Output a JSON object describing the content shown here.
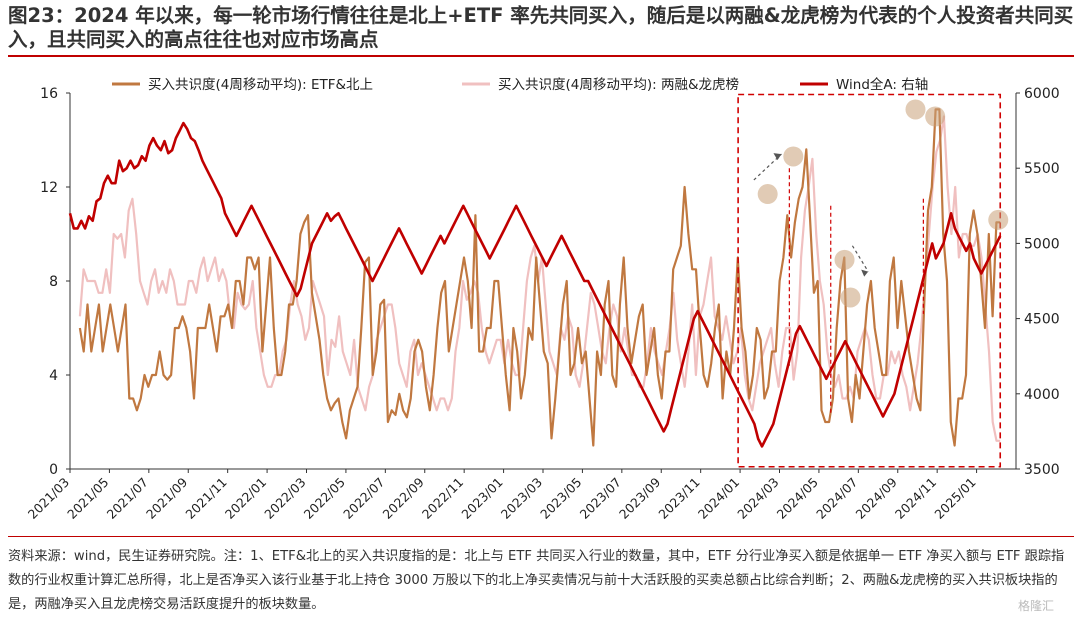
{
  "title": "图23：2024 年以来，每一轮市场行情往往是北上+ETF 率先共同买入，随后是以两融&龙虎榜为代表的个人投资者共同买入，且共同买入的高点往往也对应市场高点",
  "note": "资料来源：wind，民生证券研究院。注：1、ETF&北上的买入共识度指的是：北上与 ETF 共同买入行业的数量，其中，ETF 分行业净买入额是依据单一 ETF 净买入额与 ETF 跟踪指数的行业权重计算汇总所得，北上是否净买入该行业基于北上持仓 3000 万股以下的北上净买卖情况与前十大活跃股的买卖总额占比综合判断；2、两融&龙虎榜的买入共识板块指的是，两融净买入且龙虎榜交易活跃度提升的板块数量。",
  "watermark": "格隆汇",
  "chart_data": {
    "type": "line",
    "x_ticks": [
      "2021/03",
      "2021/05",
      "2021/07",
      "2021/09",
      "2021/11",
      "2022/01",
      "2022/03",
      "2022/05",
      "2022/07",
      "2022/09",
      "2022/11",
      "2023/01",
      "2023/03",
      "2023/05",
      "2023/07",
      "2023/09",
      "2023/11",
      "2024/01",
      "2024/03",
      "2024/05",
      "2024/07",
      "2024/09",
      "2024/11",
      "2025/01"
    ],
    "y_left": {
      "min": 0,
      "max": 16,
      "ticks": [
        0,
        4,
        8,
        12,
        16
      ]
    },
    "y_right": {
      "min": 3500,
      "max": 6000,
      "ticks": [
        3500,
        4000,
        4500,
        5000,
        5500,
        6000
      ]
    },
    "x_range": [
      0,
      48
    ],
    "series": [
      {
        "name": "买入共识度(4周移动平均): ETF&北上",
        "axis": "left",
        "color": "#c07840",
        "x_start": 0.5,
        "values": [
          6,
          5,
          7,
          5,
          6,
          7,
          5,
          6,
          7,
          6,
          5,
          6,
          7,
          3,
          3,
          2.5,
          3,
          4,
          3.5,
          4,
          4,
          5,
          4,
          3.8,
          4,
          6,
          6,
          6.5,
          6,
          5,
          3,
          6,
          6,
          6,
          7,
          6,
          5,
          6.5,
          6.5,
          7,
          6,
          8,
          8,
          7,
          9,
          9,
          8.5,
          9,
          5,
          7,
          9,
          6,
          4,
          4,
          5,
          7,
          7,
          8,
          10,
          10.5,
          10.8,
          7.5,
          6.5,
          5.5,
          4,
          3,
          2.5,
          2.8,
          3,
          2,
          1.3,
          2.5,
          3,
          3.5,
          6,
          8.8,
          9,
          4,
          5,
          7,
          7.2,
          2,
          2.5,
          2.3,
          3.2,
          2.5,
          2.2,
          3,
          5,
          5.5,
          5,
          3.5,
          2.5,
          4,
          6,
          7.5,
          8,
          5,
          6,
          7,
          8,
          9,
          8,
          6,
          10.8,
          5,
          5,
          6,
          6,
          8,
          8,
          6,
          4,
          2.5,
          6,
          5,
          3,
          4,
          6,
          5.5,
          9,
          7,
          5,
          4.5,
          1.3,
          3,
          5,
          7,
          8,
          4,
          4.5,
          6,
          4.5,
          5,
          3,
          1,
          5,
          4,
          7,
          8,
          4,
          3.5,
          7,
          9,
          6,
          4.5,
          5.5,
          6.5,
          7,
          4,
          5,
          6,
          4,
          3,
          5,
          5,
          8.5,
          9,
          9.5,
          12,
          10,
          8.5,
          8.5,
          6,
          4,
          3.5,
          4.5,
          6,
          7,
          3,
          5,
          4,
          6,
          9,
          6,
          5,
          3,
          4,
          6,
          5.5,
          3,
          3.5,
          5,
          5,
          8,
          9,
          10.8,
          9,
          10.5,
          11.5,
          12,
          13.6,
          10.6,
          7.5,
          8,
          2.5,
          2,
          2,
          3,
          6,
          8,
          9,
          3,
          2,
          4,
          3,
          5,
          7,
          8,
          6,
          5,
          4,
          4,
          8,
          9,
          6,
          8,
          6.5,
          5,
          4,
          3,
          2.5,
          7,
          11,
          12,
          15.3,
          15.3,
          10,
          8,
          2,
          1,
          3,
          3,
          4,
          10,
          11,
          10,
          8,
          6,
          10,
          6.5,
          10.5,
          10.5
        ]
      },
      {
        "name": "买入共识度(4周移动平均): 两融&龙虎榜",
        "axis": "left",
        "color": "#f0c0c0",
        "x_start": 0.5,
        "values": [
          6.5,
          8.5,
          8,
          8,
          8,
          7.5,
          7.5,
          8.5,
          7.5,
          10,
          9.8,
          10,
          9,
          11,
          11.5,
          10,
          8,
          7.5,
          7,
          8,
          8.5,
          7.5,
          8,
          7.5,
          8.5,
          8,
          7,
          7,
          7,
          8,
          8,
          7.5,
          8.5,
          9,
          8,
          8.5,
          9,
          8,
          8.5,
          8,
          6.5,
          6,
          7.5,
          7,
          6.8,
          7,
          8,
          6,
          5,
          4,
          3.5,
          3.5,
          4,
          4,
          5,
          5.5,
          7,
          8,
          7,
          6.5,
          5.5,
          6,
          8,
          7.5,
          7,
          6.5,
          4,
          5.5,
          5.2,
          6.5,
          5,
          4.5,
          4,
          5.5,
          3.5,
          3,
          2.5,
          3.5,
          4,
          5.5,
          6,
          6.5,
          7,
          7,
          6,
          4.5,
          4,
          3.5,
          5,
          5.5,
          4,
          4.5,
          4,
          3.5,
          3,
          2.5,
          3,
          3,
          2.5,
          3,
          5,
          6,
          8,
          7.2,
          7.5,
          8,
          7.5,
          6,
          5,
          4.5,
          5,
          5.5,
          5.5,
          4.5,
          5.5,
          4.5,
          4,
          4,
          6,
          8,
          9,
          9.5,
          8,
          9,
          7,
          5,
          4.5,
          4,
          6,
          5.5,
          6.5,
          6,
          4,
          3.5,
          4.5,
          6,
          7.5,
          7,
          6,
          5,
          4.5,
          6,
          7,
          6.5,
          5,
          6,
          5,
          4,
          4,
          3.5,
          3.5,
          4.5,
          6,
          5,
          4.5,
          4,
          5,
          6,
          7.5,
          5.5,
          4.5,
          3.5,
          5,
          7,
          4,
          6.5,
          7,
          8,
          9,
          6.5,
          6,
          5.5,
          6.5,
          5.5,
          4.5,
          5,
          6,
          4,
          3,
          2.5,
          3.5,
          4.5,
          5,
          5.5,
          6,
          4.5,
          3.5,
          5,
          6,
          6,
          3.8,
          5,
          9,
          11,
          12,
          13.2,
          10,
          8,
          7,
          5,
          4,
          3.5,
          4,
          3,
          3,
          3.5,
          3,
          5,
          5.5,
          6,
          5.5,
          4,
          3,
          3,
          4,
          4,
          5,
          4.5,
          5,
          4,
          3.5,
          2.5,
          3.5,
          4.5,
          6,
          8,
          10,
          12,
          13.5,
          14,
          15,
          12,
          10,
          12,
          9,
          10,
          10,
          9.5,
          9.5,
          10,
          9,
          7,
          5,
          2,
          1.2,
          1.2
        ]
      },
      {
        "name": "Wind全A: 右轴",
        "axis": "right",
        "color": "#c00000",
        "x_start": 0,
        "values": [
          5200,
          5100,
          5100,
          5150,
          5100,
          5180,
          5150,
          5280,
          5300,
          5400,
          5450,
          5400,
          5400,
          5550,
          5480,
          5500,
          5550,
          5500,
          5520,
          5580,
          5550,
          5650,
          5700,
          5650,
          5620,
          5680,
          5600,
          5620,
          5700,
          5750,
          5800,
          5760,
          5700,
          5680,
          5620,
          5550,
          5500,
          5450,
          5400,
          5350,
          5300,
          5200,
          5150,
          5100,
          5050,
          5100,
          5150,
          5200,
          5250,
          5200,
          5150,
          5100,
          5050,
          5000,
          4950,
          4900,
          4850,
          4800,
          4750,
          4700,
          4650,
          4700,
          4800,
          4900,
          5000,
          5050,
          5100,
          5150,
          5200,
          5150,
          5180,
          5200,
          5150,
          5100,
          5050,
          5000,
          4950,
          4900,
          4850,
          4800,
          4750,
          4800,
          4850,
          4900,
          4950,
          5000,
          5050,
          5100,
          5050,
          5000,
          4950,
          4900,
          4850,
          4800,
          4850,
          4900,
          4950,
          5000,
          5050,
          5000,
          5050,
          5100,
          5150,
          5200,
          5250,
          5200,
          5150,
          5100,
          5050,
          5000,
          4950,
          4900,
          4950,
          5000,
          5050,
          5100,
          5150,
          5200,
          5250,
          5200,
          5150,
          5100,
          5050,
          5000,
          4950,
          4900,
          4850,
          4900,
          4950,
          5000,
          5050,
          5000,
          4950,
          4900,
          4850,
          4800,
          4750,
          4750,
          4700,
          4650,
          4600,
          4550,
          4500,
          4450,
          4400,
          4350,
          4300,
          4250,
          4200,
          4150,
          4100,
          4050,
          4000,
          3950,
          3900,
          3850,
          3800,
          3750,
          3800,
          3900,
          4000,
          4100,
          4200,
          4300,
          4400,
          4500,
          4550,
          4500,
          4450,
          4400,
          4350,
          4300,
          4250,
          4200,
          4150,
          4100,
          4050,
          4000,
          3950,
          3900,
          3850,
          3800,
          3700,
          3650,
          3700,
          3750,
          3800,
          3900,
          4000,
          4100,
          4200,
          4300,
          4400,
          4450,
          4400,
          4350,
          4300,
          4250,
          4200,
          4150,
          4100,
          4150,
          4200,
          4250,
          4300,
          4350,
          4300,
          4250,
          4200,
          4150,
          4100,
          4050,
          4000,
          3950,
          3900,
          3850,
          3900,
          3950,
          4000,
          4100,
          4200,
          4300,
          4400,
          4500,
          4600,
          4700,
          4800,
          4900,
          5000,
          4900,
          4950,
          5000,
          5100,
          5200,
          5100,
          5050,
          5000,
          4950,
          5000,
          4900,
          4850,
          4800,
          4850,
          4900,
          4950,
          5000,
          5050
        ]
      }
    ],
    "highlight_box": {
      "x_from": 33.9,
      "x_to": 47.2,
      "y_from_right": 3515,
      "y_to_right": 5990
    },
    "markers": [
      {
        "x": 35.4,
        "y": 11.7
      },
      {
        "x": 36.7,
        "y": 13.3
      },
      {
        "x": 39.3,
        "y": 8.9
      },
      {
        "x": 39.6,
        "y": 7.3
      },
      {
        "x": 42.9,
        "y": 15.3
      },
      {
        "x": 43.9,
        "y": 15.0
      },
      {
        "x": 47.1,
        "y": 10.6
      }
    ]
  }
}
